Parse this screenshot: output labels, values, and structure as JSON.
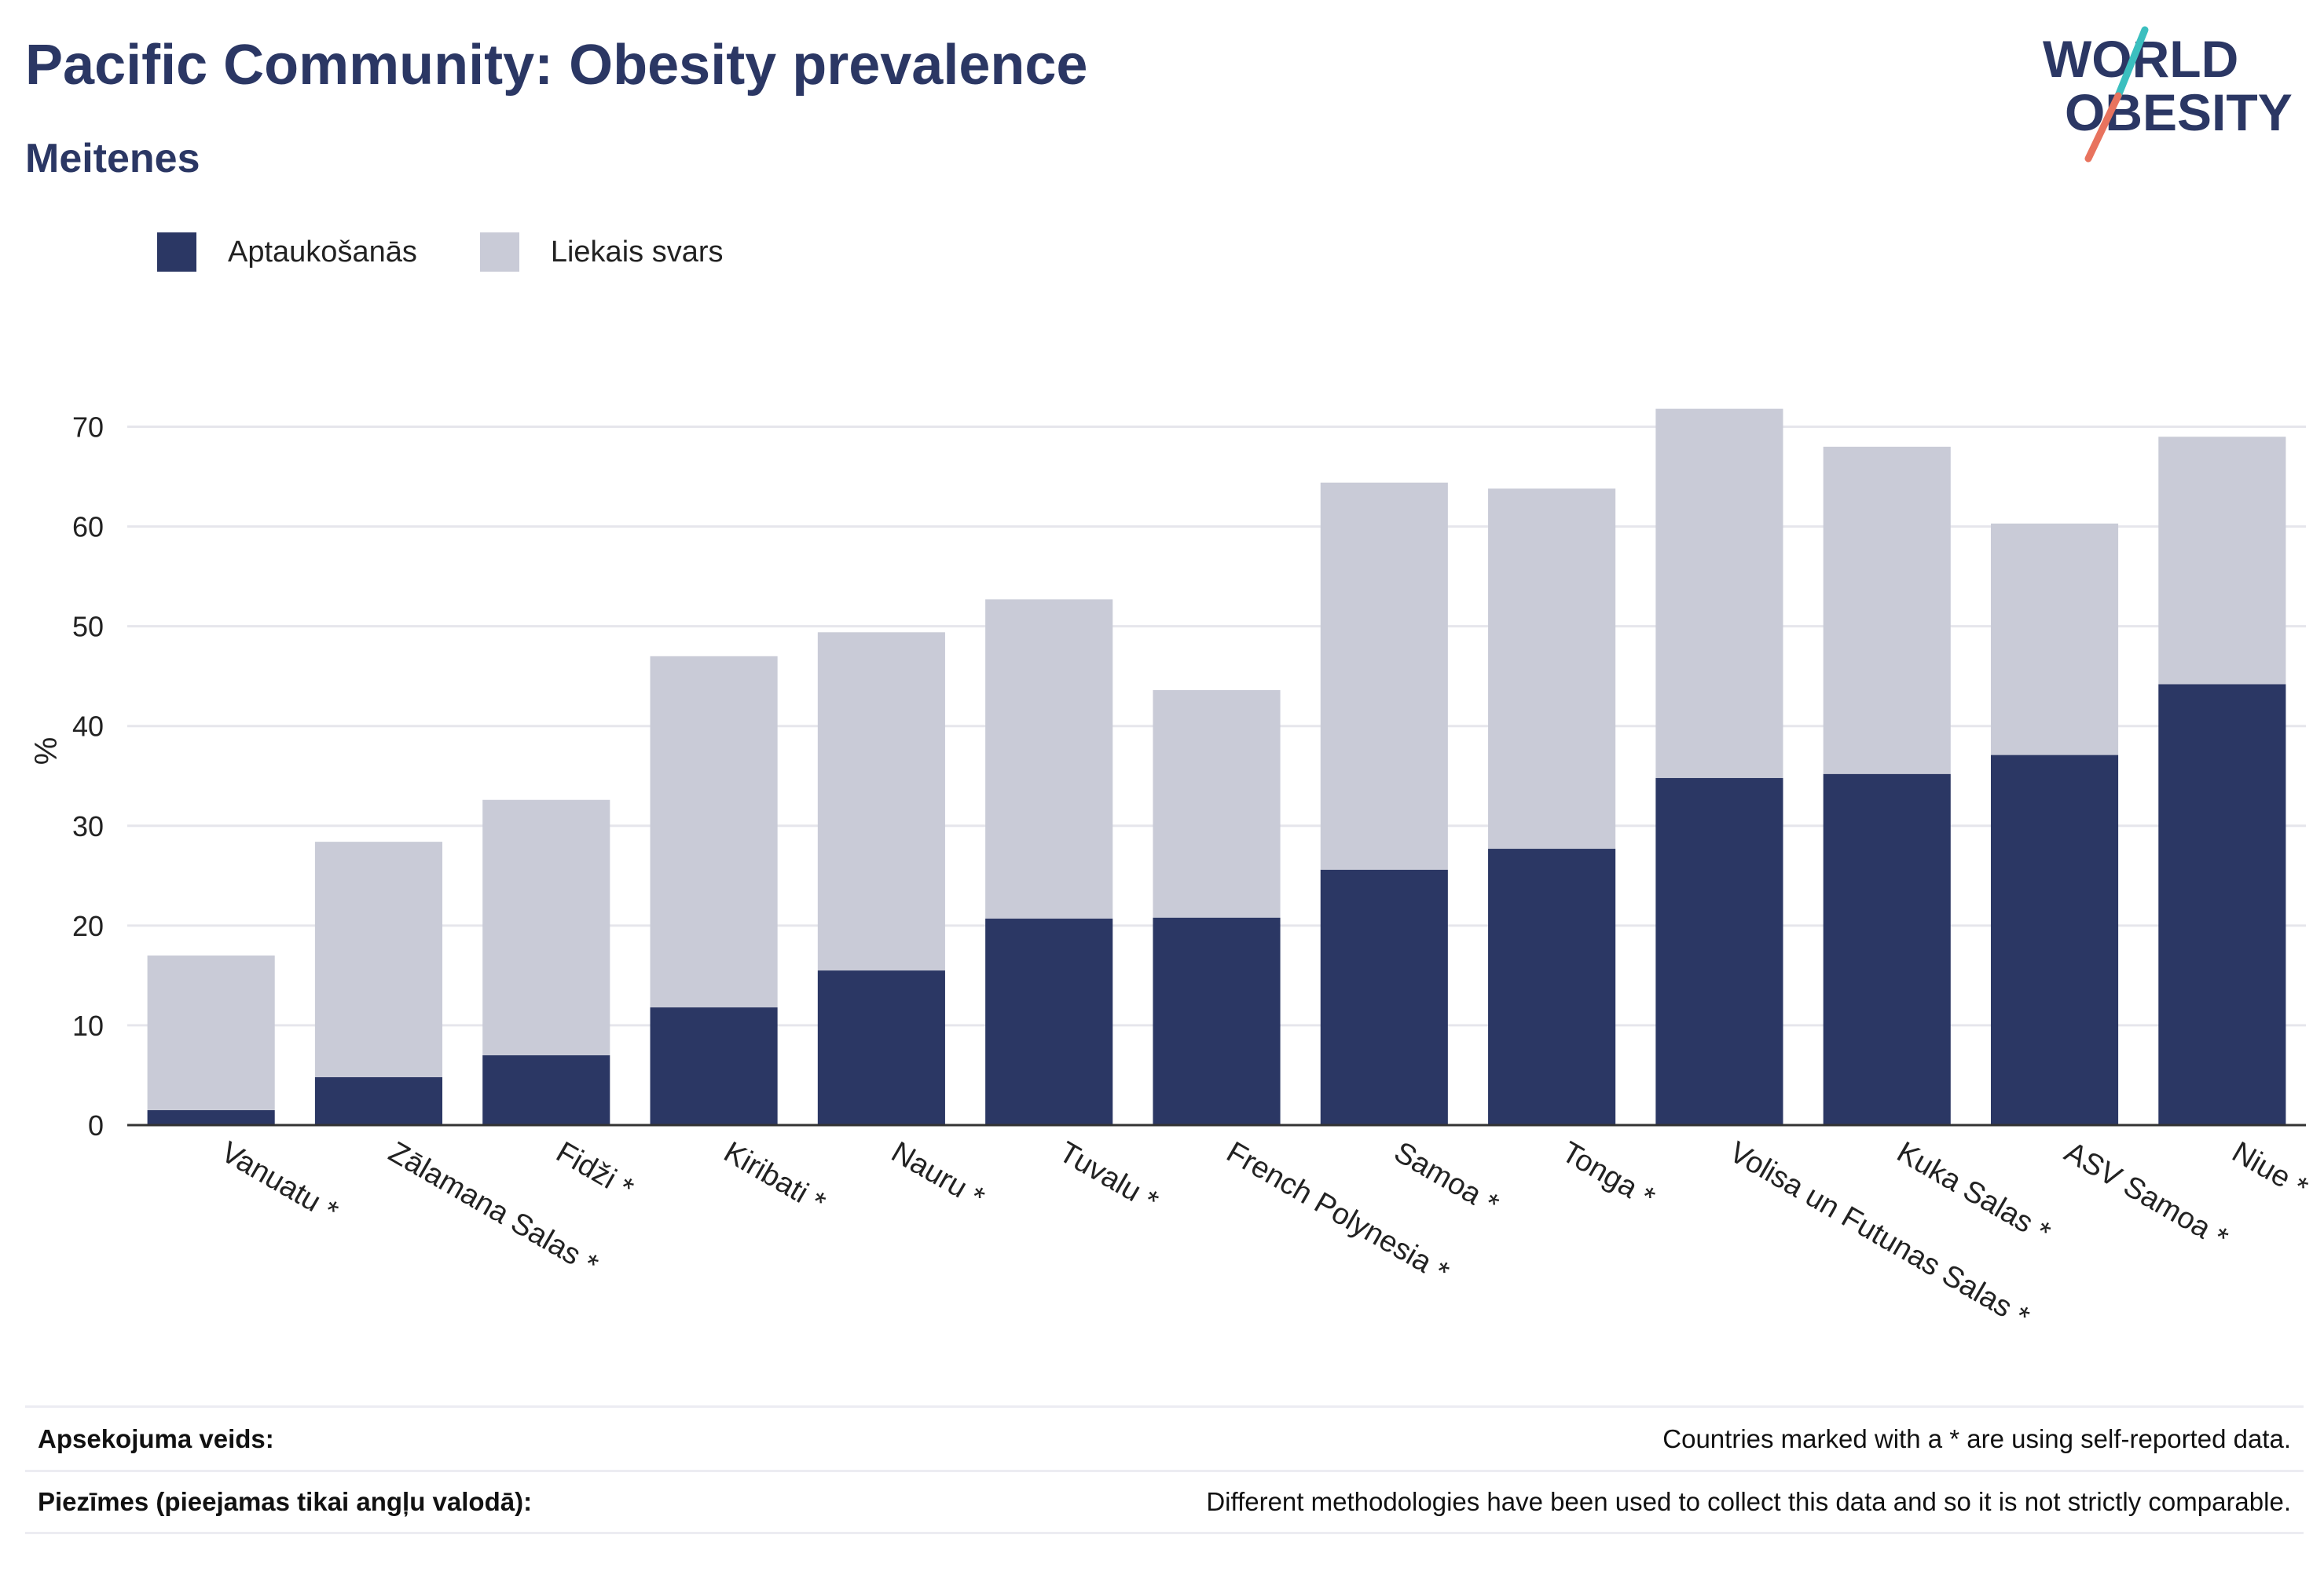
{
  "header": {
    "title": "Pacific Community: Obesity prevalence",
    "subtitle": "Meitenes"
  },
  "logo": {
    "line1": "WORLD",
    "line2": "OBESITY",
    "text_color": "#2b3764",
    "slash_top_color": "#3bbfbf",
    "slash_bottom_color": "#e8735e"
  },
  "legend": {
    "items": [
      {
        "label": "Aptaukošanās",
        "color": "#2b3764"
      },
      {
        "label": "Liekais svars",
        "color": "#c9cbd7"
      }
    ]
  },
  "chart_data": {
    "type": "bar",
    "stacked": true,
    "categories": [
      "Vanuatu *",
      "Zālamana Salas *",
      "Fidži *",
      "Kiribati *",
      "Nauru *",
      "Tuvalu *",
      "French Polynesia *",
      "Samoa *",
      "Tonga *",
      "Volisa un Futunas Salas *",
      "Kuka Salas *",
      "ASV Samoa *",
      "Niue *"
    ],
    "series": [
      {
        "name": "Aptaukošanās",
        "color": "#2b3764",
        "values": [
          1.5,
          4.8,
          7.0,
          11.8,
          15.5,
          20.7,
          20.8,
          25.6,
          27.7,
          34.8,
          35.2,
          37.1,
          44.2
        ]
      },
      {
        "name": "Liekais svars",
        "color": "#c9cbd7",
        "values": [
          15.5,
          23.6,
          25.6,
          35.2,
          33.9,
          32.0,
          22.8,
          38.8,
          36.1,
          37.0,
          32.8,
          23.2,
          24.8
        ]
      }
    ],
    "ylabel": "%",
    "xlabel": "",
    "ylim": [
      0,
      75
    ],
    "yticks": [
      0,
      10,
      20,
      30,
      40,
      50,
      60,
      70
    ],
    "grid": true,
    "legend_position": "top-left"
  },
  "footer": {
    "rows": [
      {
        "label": "Apsekojuma veids:",
        "value": "Countries marked with a * are using self-reported data."
      },
      {
        "label": "Piezīmes (pieejamas tikai angļu valodā):",
        "value": "Different methodologies have been used to collect this data and so it is not strictly comparable."
      }
    ]
  }
}
